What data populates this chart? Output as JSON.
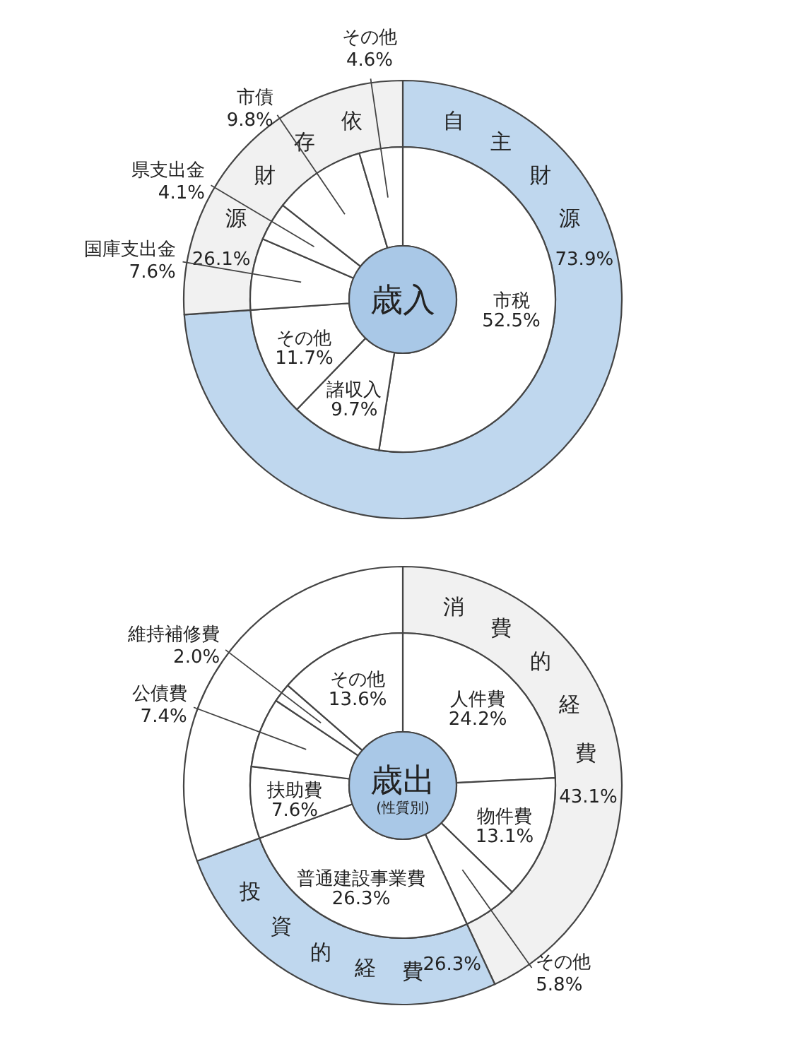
{
  "chart_data": [
    {
      "type": "donut",
      "title": "歳入",
      "categories": [
        "市税",
        "諸収入",
        "その他",
        "国庫支出金",
        "県支出金",
        "市債",
        "その他"
      ],
      "values": [
        52.5,
        9.7,
        11.7,
        7.6,
        4.1,
        9.8,
        4.6
      ],
      "value_labels": [
        "52.5%",
        "9.7%",
        "11.7%",
        "7.6%",
        "4.1%",
        "9.8%",
        "4.6%"
      ],
      "colors": [
        "#ffffff",
        "#ffffff",
        "#ffffff",
        "#ffffff",
        "#ffffff",
        "#ffffff",
        "#ffffff"
      ]
    },
    {
      "type": "donut",
      "categories": [
        "自主財源",
        "依存財源"
      ],
      "values": [
        73.9,
        26.1
      ],
      "value_labels": [
        "73.9%",
        "26.1%"
      ],
      "colors": [
        "#bfd7ee",
        "#f1f1f1"
      ]
    },
    {
      "type": "donut",
      "title": "歳出",
      "subtitle": "(性質別)",
      "categories": [
        "人件費",
        "物件費",
        "その他",
        "普通建設事業費",
        "扶助費",
        "公債費",
        "維持補修費",
        "その他"
      ],
      "values": [
        24.2,
        13.1,
        5.8,
        26.3,
        7.6,
        7.4,
        2.0,
        13.6
      ],
      "value_labels": [
        "24.2%",
        "13.1%",
        "5.8%",
        "26.3%",
        "7.6%",
        "7.4%",
        "2.0%",
        "13.6%"
      ],
      "colors": [
        "#ffffff",
        "#ffffff",
        "#ffffff",
        "#ffffff",
        "#ffffff",
        "#ffffff",
        "#ffffff",
        "#ffffff"
      ]
    },
    {
      "type": "donut",
      "categories": [
        "消費的経費",
        "投資的経費",
        null
      ],
      "values": [
        43.1,
        26.3,
        30.6
      ],
      "value_labels": [
        "43.1%",
        "26.3%",
        null
      ],
      "colors": [
        "#f1f1f1",
        "#bfd7ee",
        "#ffffff"
      ]
    }
  ]
}
